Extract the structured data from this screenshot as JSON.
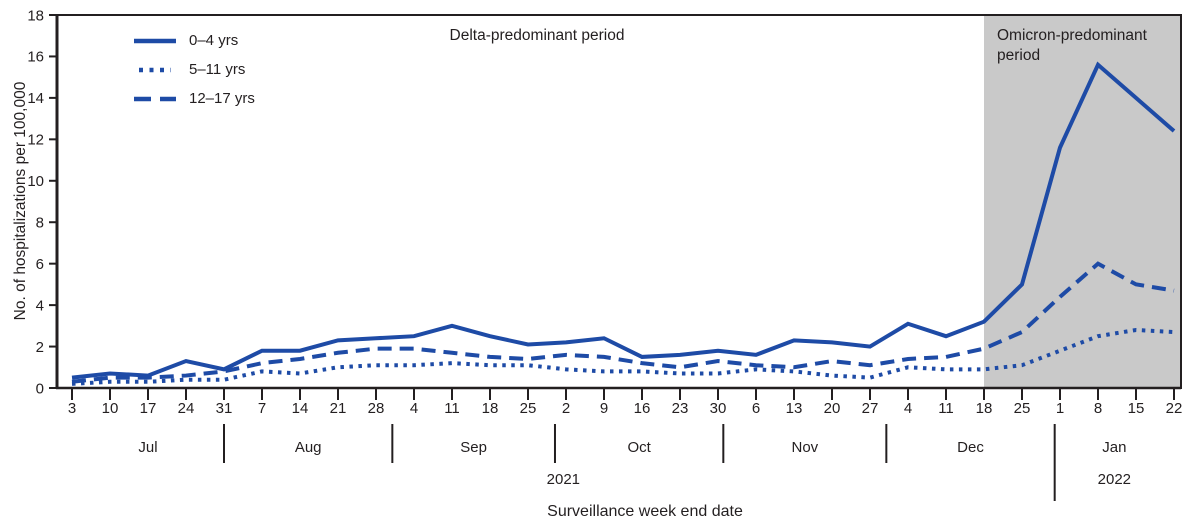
{
  "chart_data": {
    "type": "line",
    "title": "",
    "xlabel": "Surveillance week end date",
    "ylabel": "No. of hospitalizations per 100,000",
    "ylim": [
      0,
      18
    ],
    "ytick_step": 2,
    "grid": false,
    "legend_position": "top-left",
    "line_color": "#1e4ba6",
    "axis_color": "#231f20",
    "x_tick_labels": [
      "3",
      "10",
      "17",
      "24",
      "31",
      "7",
      "14",
      "21",
      "28",
      "4",
      "11",
      "18",
      "25",
      "2",
      "9",
      "16",
      "23",
      "30",
      "6",
      "13",
      "20",
      "27",
      "4",
      "11",
      "18",
      "25",
      "1",
      "8",
      "15",
      "22"
    ],
    "months": [
      "Jul",
      "Aug",
      "Sep",
      "Oct",
      "Nov",
      "Dec",
      "Jan"
    ],
    "month_separators_idx": [
      4,
      8.43,
      12.71,
      17.14,
      21.43,
      25.86
    ],
    "years": [
      {
        "label": "2021",
        "span_start_idx": 0,
        "span_end_idx": 25.86
      },
      {
        "label": "2022",
        "span_start_idx": 25.86,
        "span_end_idx": 29
      }
    ],
    "categories": [
      "Jul 3",
      "Jul 10",
      "Jul 17",
      "Jul 24",
      "Jul 31",
      "Aug 7",
      "Aug 14",
      "Aug 21",
      "Aug 28",
      "Sep 4",
      "Sep 11",
      "Sep 18",
      "Sep 25",
      "Oct 2",
      "Oct 9",
      "Oct 16",
      "Oct 23",
      "Oct 30",
      "Nov 6",
      "Nov 13",
      "Nov 20",
      "Nov 27",
      "Dec 4",
      "Dec 11",
      "Dec 18",
      "Dec 25",
      "Jan 1",
      "Jan 8",
      "Jan 15",
      "Jan 22"
    ],
    "series": [
      {
        "name": "0–4 yrs",
        "dash": "solid",
        "values": [
          0.5,
          0.7,
          0.6,
          1.3,
          0.9,
          1.8,
          1.8,
          2.3,
          2.4,
          2.5,
          3.0,
          2.5,
          2.1,
          2.2,
          2.4,
          1.5,
          1.6,
          1.8,
          1.6,
          2.3,
          2.2,
          2.0,
          3.1,
          2.5,
          3.2,
          5.0,
          11.6,
          15.6,
          14.0,
          12.4
        ]
      },
      {
        "name": "5–11 yrs",
        "dash": "dotted",
        "values": [
          0.2,
          0.3,
          0.3,
          0.4,
          0.4,
          0.8,
          0.7,
          1.0,
          1.1,
          1.1,
          1.2,
          1.1,
          1.1,
          0.9,
          0.8,
          0.8,
          0.7,
          0.7,
          0.9,
          0.8,
          0.6,
          0.5,
          1.0,
          0.9,
          0.9,
          1.1,
          1.8,
          2.5,
          2.8,
          2.7
        ]
      },
      {
        "name": "12–17 yrs",
        "dash": "dashed",
        "values": [
          0.3,
          0.5,
          0.5,
          0.6,
          0.8,
          1.2,
          1.4,
          1.7,
          1.9,
          1.9,
          1.7,
          1.5,
          1.4,
          1.6,
          1.5,
          1.2,
          1.0,
          1.3,
          1.1,
          1.0,
          1.3,
          1.1,
          1.4,
          1.5,
          1.9,
          2.7,
          4.4,
          6.0,
          5.0,
          4.7
        ]
      }
    ],
    "annotations": {
      "delta_label": "Delta-predominant period",
      "omicron_label": "Omicron-predominant period",
      "omicron_shade_start_idx": 24,
      "shade_color": "#c9c9c9"
    }
  }
}
